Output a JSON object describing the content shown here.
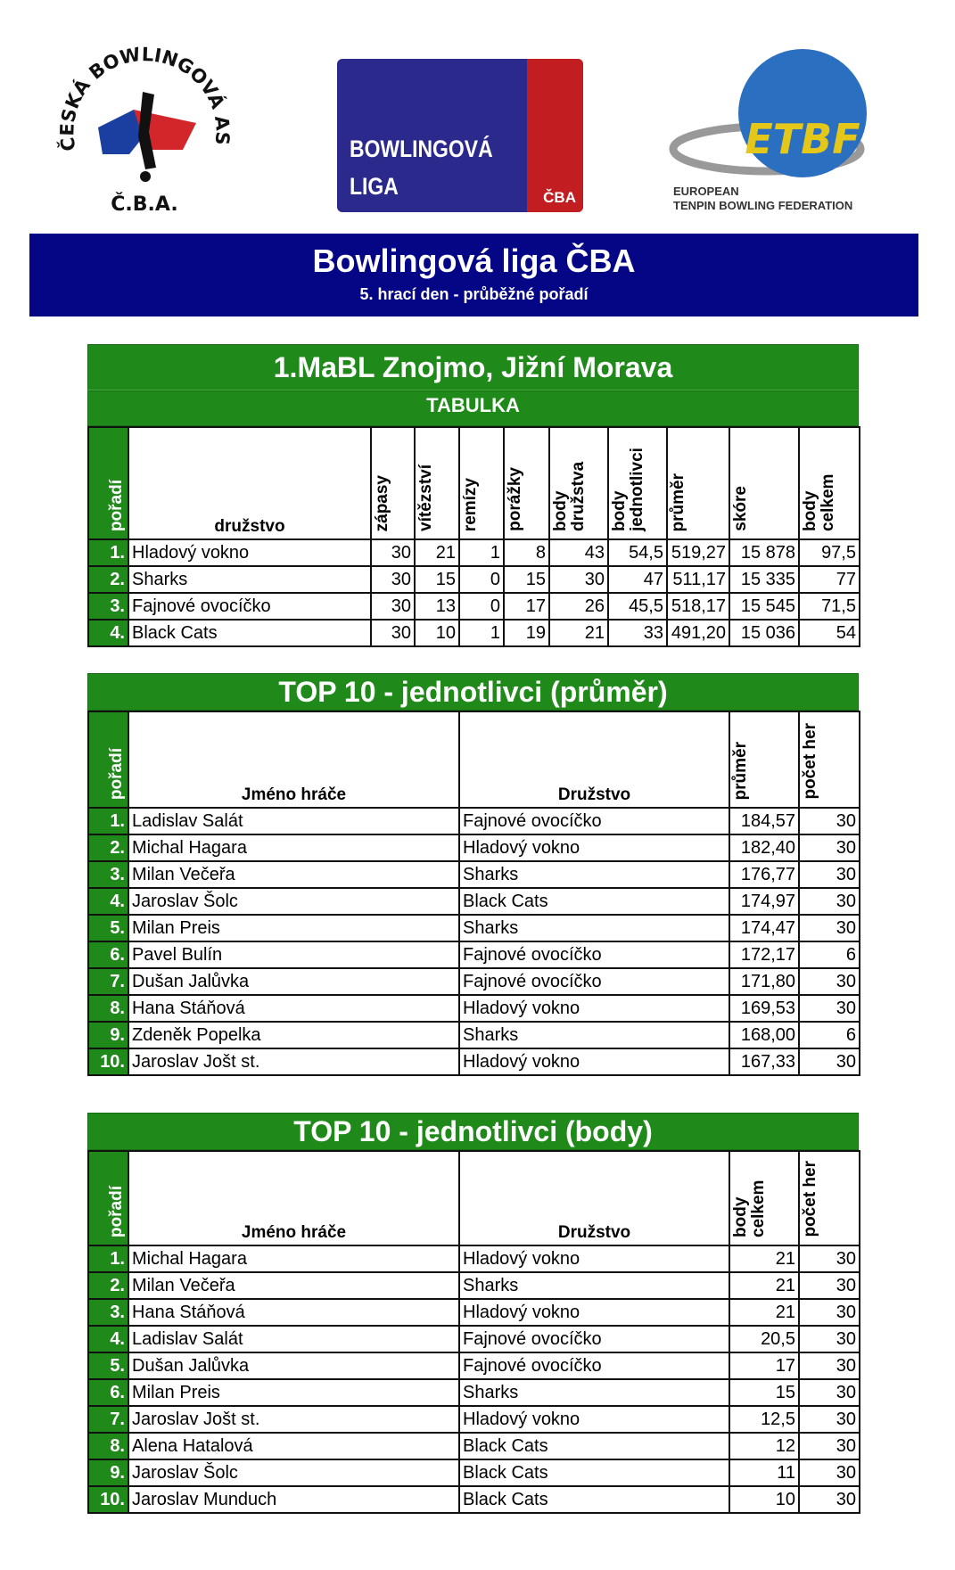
{
  "logos": {
    "cba": "ČESKÁ BOWLINGOVÁ ASOCIACE Č.B.A.",
    "liga": [
      "BOWLINGOVÁ",
      "LIGA"
    ],
    "liga_badge": "ČBA",
    "etbf_mark": "ETBF",
    "etbf": [
      "EUROPEAN",
      "TENPIN BOWLING FEDERATION"
    ]
  },
  "banner": {
    "title": "Bowlingová liga ČBA",
    "subtitle": "5. hrací den - průběžné pořadí"
  },
  "colors": {
    "banner": "#040686",
    "green": "#1f8a1a",
    "liga_blue": "#2b2a8c",
    "liga_red": "#c21d20"
  },
  "standings": {
    "title": "1.MaBL Znojmo, Jižní Morava",
    "subtitle": "TABULKA",
    "headers": [
      "pořadí",
      "družstvo",
      "zápasy",
      "vítězství",
      "remízy",
      "porážky",
      "body družstva",
      "body jednotlivci",
      "průměr",
      "skóre",
      "body celkem"
    ],
    "rows": [
      [
        "1.",
        "Hladový vokno",
        "30",
        "21",
        "1",
        "8",
        "43",
        "54,5",
        "519,27",
        "15 878",
        "97,5"
      ],
      [
        "2.",
        "Sharks",
        "30",
        "15",
        "0",
        "15",
        "30",
        "47",
        "511,17",
        "15 335",
        "77"
      ],
      [
        "3.",
        "Fajnové ovocíčko",
        "30",
        "13",
        "0",
        "17",
        "26",
        "45,5",
        "518,17",
        "15 545",
        "71,5"
      ],
      [
        "4.",
        "Black Cats",
        "30",
        "10",
        "1",
        "19",
        "21",
        "33",
        "491,20",
        "15 036",
        "54"
      ]
    ]
  },
  "top_average": {
    "title": "TOP 10 - jednotlivci (průměr)",
    "headers": [
      "pořadí",
      "Jméno hráče",
      "Družstvo",
      "průměr",
      "počet her"
    ],
    "rows": [
      [
        "1.",
        "Ladislav Salát",
        "Fajnové ovocíčko",
        "184,57",
        "30"
      ],
      [
        "2.",
        "Michal Hagara",
        "Hladový vokno",
        "182,40",
        "30"
      ],
      [
        "3.",
        "Milan Večeřa",
        "Sharks",
        "176,77",
        "30"
      ],
      [
        "4.",
        "Jaroslav Šolc",
        "Black Cats",
        "174,97",
        "30"
      ],
      [
        "5.",
        "Milan Preis",
        "Sharks",
        "174,47",
        "30"
      ],
      [
        "6.",
        "Pavel Bulín",
        "Fajnové ovocíčko",
        "172,17",
        "6"
      ],
      [
        "7.",
        "Dušan Jalůvka",
        "Fajnové ovocíčko",
        "171,80",
        "30"
      ],
      [
        "8.",
        "Hana Stáňová",
        "Hladový vokno",
        "169,53",
        "30"
      ],
      [
        "9.",
        "Zdeněk Popelka",
        "Sharks",
        "168,00",
        "6"
      ],
      [
        "10.",
        "Jaroslav Jošt st.",
        "Hladový vokno",
        "167,33",
        "30"
      ]
    ]
  },
  "top_points": {
    "title": "TOP 10 - jednotlivci (body)",
    "headers": [
      "pořadí",
      "Jméno hráče",
      "Družstvo",
      "body celkem",
      "počet her"
    ],
    "rows": [
      [
        "1.",
        "Michal Hagara",
        "Hladový vokno",
        "21",
        "30"
      ],
      [
        "2.",
        "Milan Večeřa",
        "Sharks",
        "21",
        "30"
      ],
      [
        "3.",
        "Hana Stáňová",
        "Hladový vokno",
        "21",
        "30"
      ],
      [
        "4.",
        "Ladislav Salát",
        "Fajnové ovocíčko",
        "20,5",
        "30"
      ],
      [
        "5.",
        "Dušan Jalůvka",
        "Fajnové ovocíčko",
        "17",
        "30"
      ],
      [
        "6.",
        "Milan Preis",
        "Sharks",
        "15",
        "30"
      ],
      [
        "7.",
        "Jaroslav Jošt st.",
        "Hladový vokno",
        "12,5",
        "30"
      ],
      [
        "8.",
        "Alena Hatalová",
        "Black Cats",
        "12",
        "30"
      ],
      [
        "9.",
        "Jaroslav Šolc",
        "Black Cats",
        "11",
        "30"
      ],
      [
        "10.",
        "Jaroslav Munduch",
        "Black Cats",
        "10",
        "30"
      ]
    ]
  }
}
